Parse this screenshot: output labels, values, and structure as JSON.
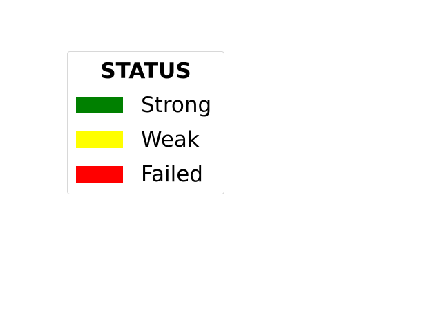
{
  "legend": {
    "title": "STATUS",
    "items": [
      {
        "label": "Strong",
        "color": "#008000"
      },
      {
        "label": "Weak",
        "color": "#ffff00"
      },
      {
        "label": "Failed",
        "color": "#ff0000"
      }
    ]
  }
}
